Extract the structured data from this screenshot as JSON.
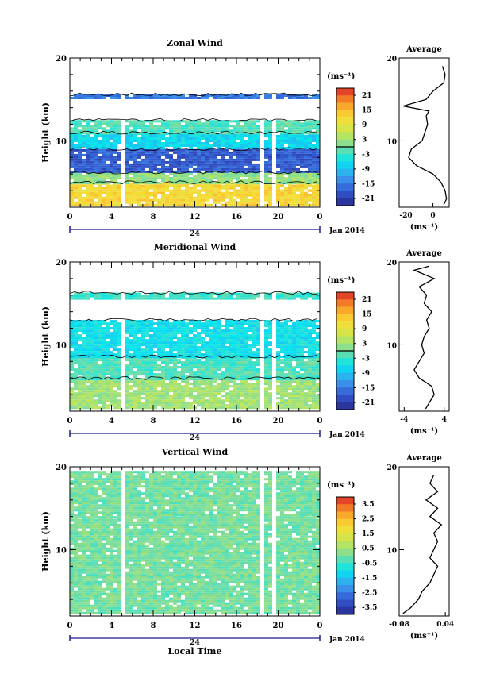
{
  "chart_data": [
    {
      "type": "heatmap",
      "title": "Zonal Wind",
      "ylabel": "Height (km)",
      "ylim": [
        2,
        20
      ],
      "y_ticks": [
        "20",
        "10"
      ],
      "x_ticks": [
        "0",
        "4",
        "8",
        "12",
        "16",
        "20",
        "0"
      ],
      "date_axis": {
        "day_label": "24",
        "month_label": "Jan 2014"
      },
      "colorbar": {
        "unit": "(ms⁻¹)",
        "ticks": [
          "21",
          "15",
          "9",
          "3",
          "-3",
          "-9",
          "-15",
          "-21"
        ]
      },
      "bands": [
        {
          "bottom": 2.3,
          "top": 5.0,
          "value": 12
        },
        {
          "bottom": 5.0,
          "top": 6.2,
          "value": 2
        },
        {
          "bottom": 6.2,
          "top": 9.0,
          "value": -18
        },
        {
          "bottom": 9.0,
          "top": 11.0,
          "value": -7
        },
        {
          "bottom": 11.0,
          "top": 12.5,
          "value": -2
        },
        {
          "bottom": 15.2,
          "top": 15.6,
          "value": -15
        }
      ],
      "gaps_hours": [
        [
          4.6,
          5.0
        ],
        [
          5.4,
          5.7
        ],
        [
          18.0,
          18.6
        ],
        [
          19.4,
          19.7
        ]
      ],
      "profile": {
        "title": "Average",
        "xlabel": "(ms⁻¹)",
        "x_ticks": [
          "-20",
          "0"
        ],
        "xlim": [
          -25,
          12
        ],
        "points": [
          [
            8,
            2.3
          ],
          [
            10,
            3
          ],
          [
            9,
            4
          ],
          [
            6,
            5
          ],
          [
            0,
            6
          ],
          [
            -12,
            7
          ],
          [
            -18,
            8
          ],
          [
            -16,
            9
          ],
          [
            -8,
            10
          ],
          [
            -6,
            11
          ],
          [
            -4,
            12
          ],
          [
            -5,
            13
          ],
          [
            -3,
            13.6
          ],
          [
            -22,
            14.2
          ],
          [
            -5,
            15
          ],
          [
            0,
            16
          ],
          [
            8,
            17
          ],
          [
            9,
            18
          ],
          [
            7,
            19
          ]
        ]
      }
    },
    {
      "type": "heatmap",
      "title": "Meridional Wind",
      "ylabel": "Height (km)",
      "ylim": [
        2,
        20
      ],
      "y_ticks": [
        "20",
        "10"
      ],
      "x_ticks": [
        "0",
        "4",
        "8",
        "12",
        "16",
        "20",
        "0"
      ],
      "date_axis": {
        "day_label": "24",
        "month_label": "Jan 2014"
      },
      "colorbar": {
        "unit": "(ms⁻¹)",
        "ticks": [
          "21",
          "15",
          "9",
          "3",
          "-3",
          "-9",
          "-15",
          "-21"
        ]
      },
      "bands": [
        {
          "bottom": 2.3,
          "top": 6.0,
          "value": 3
        },
        {
          "bottom": 6.0,
          "top": 8.6,
          "value": -2
        },
        {
          "bottom": 8.6,
          "top": 13.0,
          "value": -6
        },
        {
          "bottom": 15.5,
          "top": 16.3,
          "value": -3
        }
      ],
      "gaps_hours": [
        [
          4.6,
          5.0
        ],
        [
          5.4,
          5.7
        ],
        [
          18.0,
          18.6
        ],
        [
          19.4,
          19.7
        ]
      ],
      "profile": {
        "title": "Average",
        "xlabel": "(ms⁻¹)",
        "x_ticks": [
          "-4",
          "4"
        ],
        "xlim": [
          -5,
          5
        ],
        "points": [
          [
            0.3,
            2.3
          ],
          [
            1,
            3
          ],
          [
            2,
            4
          ],
          [
            1.5,
            5
          ],
          [
            -1,
            6
          ],
          [
            -2,
            7
          ],
          [
            -1,
            8
          ],
          [
            0,
            9
          ],
          [
            -0.5,
            10
          ],
          [
            0,
            11
          ],
          [
            1,
            12
          ],
          [
            0.5,
            13
          ],
          [
            1.5,
            14
          ],
          [
            0,
            15
          ],
          [
            0.5,
            16
          ],
          [
            -1,
            17
          ],
          [
            2,
            18
          ],
          [
            -2,
            19
          ],
          [
            1,
            19.5
          ]
        ]
      }
    },
    {
      "type": "heatmap",
      "title": "Vertical Wind",
      "ylabel": "Height (km)",
      "xlabel": "Local Time",
      "ylim": [
        2,
        20
      ],
      "y_ticks": [
        "20",
        "10"
      ],
      "x_ticks": [
        "0",
        "4",
        "8",
        "12",
        "16",
        "20",
        "0"
      ],
      "date_axis": {
        "day_label": "24",
        "month_label": "Jan 2014"
      },
      "colorbar": {
        "unit": "(ms⁻¹)",
        "ticks": [
          "3.5",
          "2.5",
          "1.5",
          "0.5",
          "-0.5",
          "-1.5",
          "-2.5",
          "-3.5"
        ]
      },
      "bands": [
        {
          "bottom": 2.3,
          "top": 14.0,
          "value": 0
        },
        {
          "bottom": 14.0,
          "top": 19.5,
          "value": 0
        }
      ],
      "gaps_hours": [
        [
          4.6,
          5.0
        ],
        [
          5.4,
          5.7
        ],
        [
          18.0,
          18.6
        ],
        [
          19.4,
          19.7
        ]
      ],
      "profile": {
        "title": "Average",
        "xlabel": "(ms⁻¹)",
        "x_ticks": [
          "-0.08",
          "0.04"
        ],
        "xlim": [
          -0.08,
          0.05
        ],
        "points": [
          [
            -0.07,
            2.3
          ],
          [
            -0.05,
            3
          ],
          [
            -0.03,
            4
          ],
          [
            -0.02,
            5
          ],
          [
            0,
            6
          ],
          [
            0.01,
            7
          ],
          [
            0.02,
            8
          ],
          [
            0.0,
            9
          ],
          [
            0.01,
            10
          ],
          [
            0.02,
            11
          ],
          [
            0.01,
            12
          ],
          [
            0.03,
            13
          ],
          [
            0.0,
            14
          ],
          [
            0.02,
            15
          ],
          [
            -0.01,
            16
          ],
          [
            0.02,
            17
          ],
          [
            0.0,
            18
          ],
          [
            0.01,
            19
          ]
        ]
      }
    }
  ]
}
